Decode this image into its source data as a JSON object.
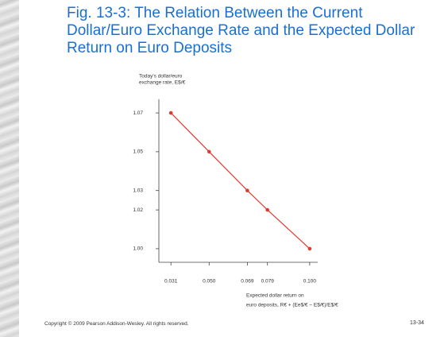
{
  "chart_data": {
    "type": "line",
    "title": "Fig. 13-3: The Relation Between the Current Dollar/Euro Exchange Rate and the Expected Dollar Return on Euro Deposits",
    "ylabel": [
      "Today's dollar/euro",
      "exchange rate, E$/€"
    ],
    "xlabel": [
      "Expected dollar return on",
      "euro deposits, R€ + (Ee$/€ − E$/€)/E$/€"
    ],
    "x": [
      0.031,
      0.05,
      0.069,
      0.079,
      0.1
    ],
    "series": [
      {
        "name": "Expected dollar return on euro deposits",
        "color": "#e03a2e",
        "values": [
          1.07,
          1.05,
          1.03,
          1.02,
          1.0
        ]
      }
    ],
    "xlim": [
      0.025,
      0.104
    ],
    "ylim": [
      0.993,
      1.077
    ],
    "xticks": [
      0.031,
      {
        "value": 0.05,
        "label": "0.050"
      },
      0.069,
      0.079,
      {
        "value": 0.1,
        "label": "0.100"
      }
    ],
    "yticks": [
      {
        "value": 1.0,
        "label": "1.00"
      },
      1.02,
      1.03,
      1.05,
      1.07
    ],
    "grid": false
  },
  "slide": {
    "footer": "Copyright © 2009 Pearson Addison-Wesley. All rights reserved.",
    "page_number": "13-34"
  }
}
